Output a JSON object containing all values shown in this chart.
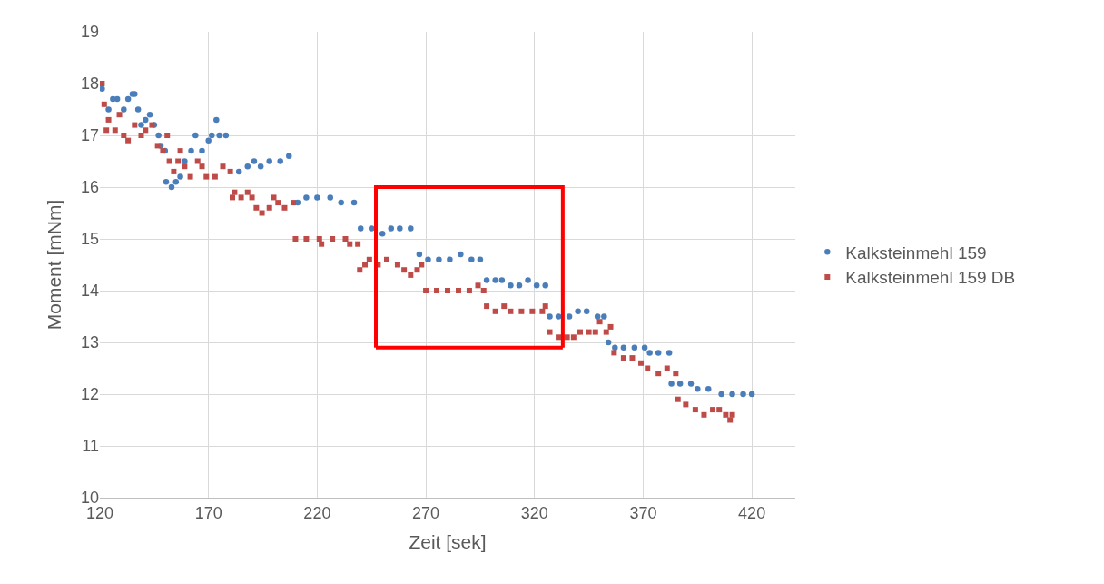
{
  "chart_data": {
    "type": "scatter",
    "xlabel": "Zeit [sek]",
    "ylabel": "Moment [mNm]",
    "xlim": [
      120,
      440
    ],
    "xticks": [
      120,
      170,
      220,
      270,
      320,
      370,
      420
    ],
    "ylim": [
      10,
      19
    ],
    "yticks": [
      10,
      11,
      12,
      13,
      14,
      15,
      16,
      17,
      18,
      19
    ],
    "grid": true,
    "legend": "right",
    "series": [
      {
        "name": "Kalksteinmehl 159",
        "color": "#4a7ebb",
        "marker": "circle",
        "x": [
          121,
          124,
          126,
          128,
          131,
          133,
          135,
          136,
          137.6,
          139,
          141,
          143,
          145,
          147,
          148,
          150,
          150.5,
          153,
          155,
          157,
          159,
          162,
          164,
          167,
          170,
          171.5,
          173.6,
          175,
          178,
          184,
          188,
          191,
          194,
          198,
          203,
          207,
          211,
          215,
          220,
          226,
          231,
          237,
          240,
          245,
          250,
          254,
          258,
          263,
          267,
          271,
          276,
          281,
          286,
          291,
          295,
          298,
          302,
          305,
          309,
          313,
          317,
          321,
          325,
          327,
          331,
          336,
          340,
          344,
          349,
          352,
          354,
          357,
          361,
          366,
          370.7,
          373,
          377,
          382,
          383,
          387,
          392,
          395,
          400,
          406,
          411,
          416,
          420
        ],
        "values": [
          17.9,
          17.5,
          17.7,
          17.7,
          17.5,
          17.7,
          17.8,
          17.8,
          17.5,
          17.2,
          17.3,
          17.4,
          17.2,
          17.0,
          16.8,
          16.7,
          16.1,
          16.0,
          16.1,
          16.2,
          16.5,
          16.7,
          17.0,
          16.7,
          16.9,
          17.0,
          17.3,
          17.0,
          17.0,
          16.3,
          16.4,
          16.5,
          16.4,
          16.5,
          16.5,
          16.6,
          15.7,
          15.8,
          15.8,
          15.8,
          15.7,
          15.7,
          15.2,
          15.2,
          15.1,
          15.2,
          15.2,
          15.2,
          14.7,
          14.6,
          14.6,
          14.6,
          14.7,
          14.6,
          14.6,
          14.2,
          14.2,
          14.2,
          14.1,
          14.1,
          14.2,
          14.1,
          14.1,
          13.5,
          13.5,
          13.5,
          13.6,
          13.6,
          13.5,
          13.5,
          13.0,
          12.9,
          12.9,
          12.9,
          12.9,
          12.8,
          12.8,
          12.8,
          12.2,
          12.2,
          12.2,
          12.1,
          12.1,
          12.0,
          12.0,
          12.0,
          12.0
        ]
      },
      {
        "name": "Kalksteinmehl 159 DB",
        "color": "#be4b48",
        "marker": "square",
        "x": [
          121,
          122,
          123,
          124,
          127,
          129,
          131,
          133,
          136,
          139,
          141,
          144,
          146.6,
          149,
          151,
          152,
          154,
          156,
          157,
          159,
          161.6,
          165,
          167,
          169,
          173,
          176.6,
          180,
          181,
          182,
          185,
          188,
          190,
          192,
          194.6,
          198,
          200,
          202,
          205,
          209,
          210,
          215,
          221,
          222,
          227,
          233,
          235,
          238.7,
          239.6,
          242,
          244,
          248,
          252,
          257,
          260,
          263,
          266,
          268,
          270,
          275,
          280,
          285,
          290,
          294,
          296.6,
          298,
          302,
          306,
          309,
          314,
          319,
          323.6,
          325,
          327,
          331,
          335,
          338,
          341,
          345,
          348,
          350,
          353,
          355,
          356.6,
          361,
          365,
          369,
          372,
          377,
          381,
          385,
          386,
          389.6,
          394,
          398,
          402,
          405,
          408,
          410,
          411
        ],
        "values": [
          18.0,
          17.6,
          17.1,
          17.3,
          17.1,
          17.4,
          17.0,
          16.9,
          17.2,
          17.0,
          17.1,
          17.2,
          16.8,
          16.7,
          17.0,
          16.5,
          16.3,
          16.5,
          16.7,
          16.4,
          16.2,
          16.5,
          16.4,
          16.2,
          16.2,
          16.4,
          16.3,
          15.8,
          15.9,
          15.8,
          15.9,
          15.8,
          15.6,
          15.5,
          15.6,
          15.8,
          15.7,
          15.6,
          15.7,
          15.0,
          15.0,
          15.0,
          14.9,
          15.0,
          15.0,
          14.9,
          14.9,
          14.4,
          14.5,
          14.6,
          14.5,
          14.6,
          14.5,
          14.4,
          14.3,
          14.4,
          14.5,
          14.0,
          14.0,
          14.0,
          14.0,
          14.0,
          14.1,
          14.0,
          13.7,
          13.6,
          13.7,
          13.6,
          13.6,
          13.6,
          13.6,
          13.7,
          13.2,
          13.1,
          13.1,
          13.1,
          13.2,
          13.2,
          13.2,
          13.4,
          13.2,
          13.3,
          12.8,
          12.7,
          12.7,
          12.6,
          12.5,
          12.4,
          12.5,
          12.4,
          11.9,
          11.8,
          11.7,
          11.6,
          11.7,
          11.7,
          11.6,
          11.5,
          11.6
        ]
      },
      {
        "type": "line",
        "color": "#ff0000",
        "x": [
          247,
          247,
          333,
          333
        ],
        "values": [
          12.9,
          16.0,
          16.0,
          12.9
        ]
      },
      {
        "type": "line",
        "color": "#ff0000",
        "x": [
          247,
          333
        ],
        "values": [
          12.9,
          12.9
        ]
      }
    ]
  }
}
